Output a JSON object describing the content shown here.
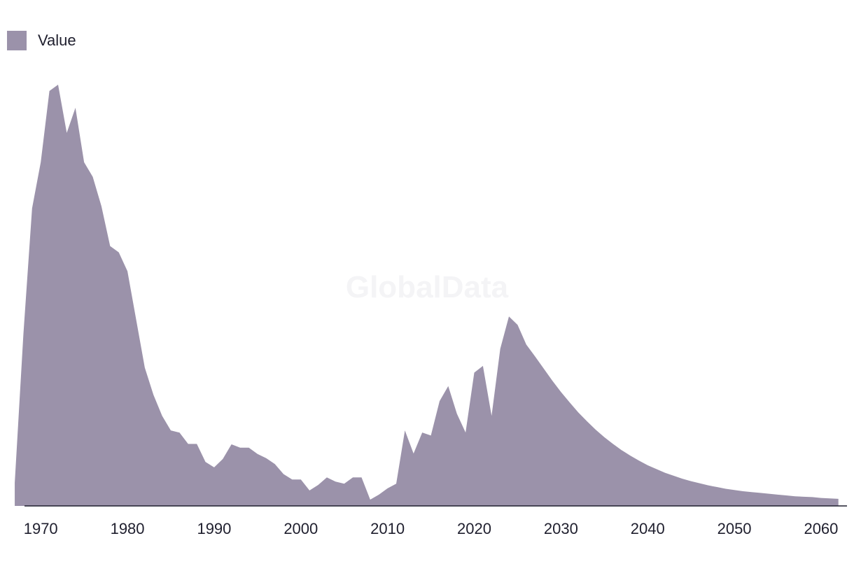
{
  "colors": {
    "series": "#9b92aa",
    "axis": "#1f1f2e",
    "watermark": "#f4f4f6"
  },
  "watermark": "GlobalData",
  "chart_data": {
    "type": "area",
    "title": "",
    "xlabel": "",
    "ylabel": "",
    "legend": "top-left",
    "grid": false,
    "xlim": [
      1965.3,
      2063.8
    ],
    "ylim": [
      0,
      100
    ],
    "x_ticks": [
      "1970",
      "1980",
      "1990",
      "2000",
      "2010",
      "2020",
      "2030",
      "2040",
      "2050",
      "2060"
    ],
    "series": [
      {
        "name": "Value",
        "x": [
          1967,
          1968,
          1969,
          1970,
          1971,
          1972,
          1973,
          1974,
          1975,
          1976,
          1977,
          1978,
          1979,
          1980,
          1981,
          1982,
          1983,
          1984,
          1985,
          1986,
          1987,
          1988,
          1989,
          1990,
          1991,
          1992,
          1993,
          1994,
          1995,
          1996,
          1997,
          1998,
          1999,
          2000,
          2001,
          2002,
          2003,
          2004,
          2005,
          2006,
          2007,
          2008,
          2009,
          2010,
          2011,
          2012,
          2013,
          2014,
          2015,
          2016,
          2017,
          2018,
          2019,
          2020,
          2021,
          2022,
          2023,
          2024,
          2025,
          2026,
          2027,
          2028,
          2029,
          2030,
          2031,
          2032,
          2033,
          2034,
          2035,
          2036,
          2037,
          2038,
          2039,
          2040,
          2041,
          2042,
          2043,
          2044,
          2045,
          2046,
          2047,
          2048,
          2049,
          2050,
          2051,
          2052,
          2053,
          2054,
          2055,
          2056,
          2057,
          2058,
          2059,
          2060,
          2061,
          2062
        ],
        "values": [
          5.5,
          41,
          71,
          82,
          99,
          100.5,
          89,
          95,
          82,
          78.5,
          71.5,
          62,
          60.5,
          56,
          44.5,
          33,
          26.5,
          21.5,
          18,
          17.5,
          14.8,
          14.8,
          10.5,
          9.2,
          11.2,
          14.7,
          13.9,
          13.9,
          12.4,
          11.4,
          10,
          7.6,
          6.3,
          6.3,
          3.7,
          5,
          6.8,
          5.8,
          5.3,
          6.8,
          6.8,
          1.5,
          2.7,
          4.2,
          5.3,
          18,
          12.5,
          17.5,
          16.8,
          25,
          28.6,
          22,
          17.5,
          31.8,
          33.4,
          21.5,
          37.5,
          45.2,
          43.2,
          38.5,
          35.7,
          32.8,
          29.9,
          27.2,
          24.7,
          22.3,
          20.2,
          18.2,
          16.4,
          14.8,
          13.3,
          12,
          10.8,
          9.7,
          8.8,
          7.9,
          7.2,
          6.5,
          5.9,
          5.4,
          4.9,
          4.5,
          4.1,
          3.8,
          3.5,
          3.3,
          3.1,
          2.9,
          2.7,
          2.5,
          2.3,
          2.2,
          2.1,
          1.9,
          1.8,
          1.7
        ]
      }
    ]
  }
}
